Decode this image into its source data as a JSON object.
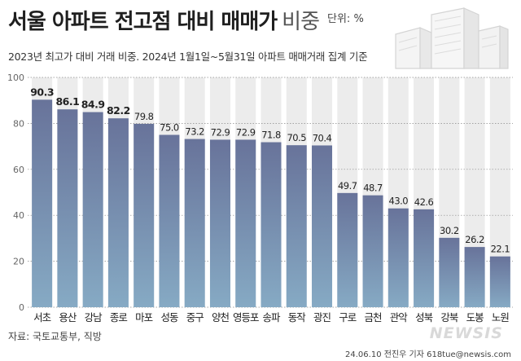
{
  "header": {
    "title_main": "서울 아파트 전고점 대비 매매가",
    "title_sub": "비중",
    "unit": "단위: %",
    "subtitle": "2023년 최고가 대비 거래 비중. 2024년 1월1일~5월31일 아파트 매매거래 집계 기준"
  },
  "footer": {
    "source": "자료: 국토교통부, 직방",
    "credit": "24.06.10 전진우 기자 618tue@newsis.com",
    "logo": "NEWSIS"
  },
  "colors": {
    "bar_top": "#68739a",
    "bar_bottom": "#86aac4",
    "bg_column": "#ececec"
  },
  "chart_data": {
    "type": "bar",
    "categories": [
      "서초",
      "용산",
      "강남",
      "종로",
      "마포",
      "성동",
      "중구",
      "양천",
      "영등포",
      "송파",
      "동작",
      "광진",
      "구로",
      "금천",
      "관악",
      "성북",
      "강북",
      "도봉",
      "노원"
    ],
    "values": [
      90.3,
      86.1,
      84.9,
      82.2,
      79.8,
      75.0,
      73.2,
      72.9,
      72.9,
      71.8,
      70.5,
      70.4,
      49.7,
      48.7,
      43.0,
      42.6,
      30.2,
      26.2,
      22.1
    ],
    "value_labels": [
      "90.3",
      "86.1",
      "84.9",
      "82.2",
      "79.8",
      "75.0",
      "73.2",
      "72.9",
      "72.9",
      "71.8",
      "70.5",
      "70.4",
      "49.7",
      "48.7",
      "43.0",
      "42.6",
      "30.2",
      "26.2",
      "22.1"
    ],
    "bold_label_count": 4,
    "title": "서울 아파트 전고점 대비 매매가 비중",
    "xlabel": "",
    "ylabel": "",
    "ylim": [
      0,
      100
    ],
    "yticks": [
      0,
      20,
      40,
      60,
      80,
      100
    ],
    "ytick_labels": [
      "0",
      "20",
      "40",
      "60",
      "80",
      "100"
    ],
    "grid": true,
    "legend": "none"
  }
}
